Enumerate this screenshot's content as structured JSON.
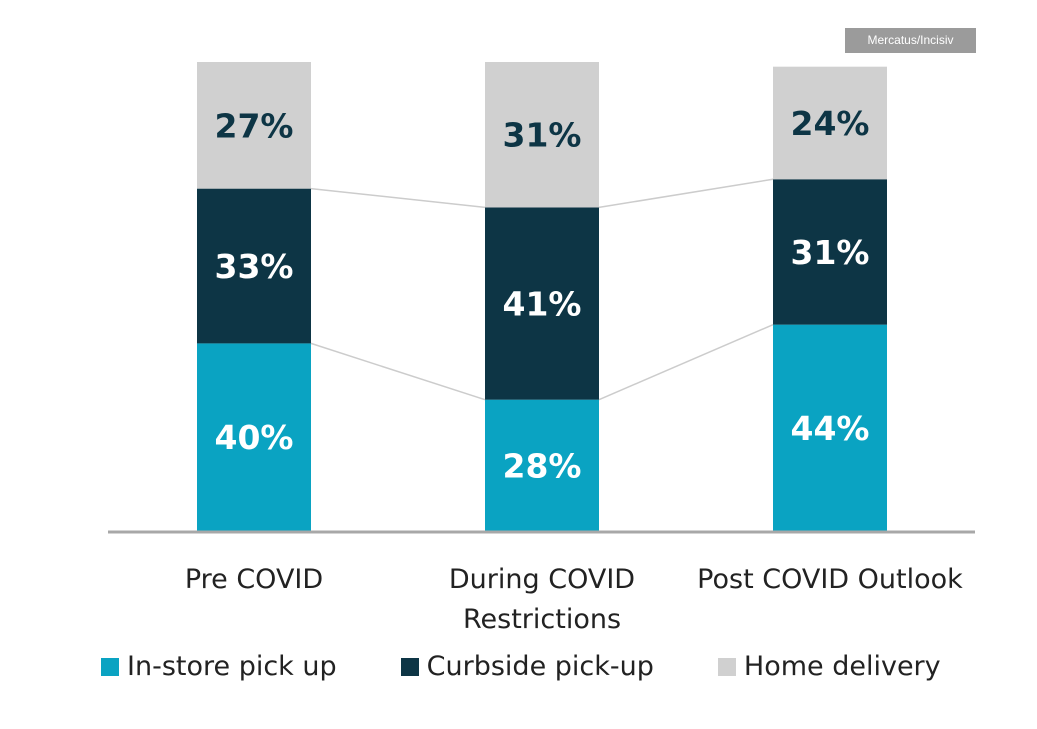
{
  "source_badge": "Mercatus/Incisiv",
  "chart_data": {
    "type": "bar",
    "stacked": true,
    "normalized_percent": true,
    "categories": [
      [
        "Pre COVID"
      ],
      [
        "During COVID",
        "Restrictions"
      ],
      [
        "Post COVID Outlook"
      ]
    ],
    "series": [
      {
        "name": "In-store pick up",
        "color": "#0aa3c2",
        "label_color": "#ffffff",
        "values": [
          40,
          28,
          44
        ]
      },
      {
        "name": "Curbside pick-up",
        "color": "#0d3545",
        "label_color": "#ffffff",
        "values": [
          33,
          41,
          31
        ]
      },
      {
        "name": "Home delivery",
        "color": "#d0d0d0",
        "label_color": "#0d3545",
        "values": [
          27,
          31,
          24
        ]
      }
    ],
    "value_suffix": "%",
    "ylim": [
      0,
      100
    ],
    "grid": false,
    "legend_position": "bottom"
  }
}
